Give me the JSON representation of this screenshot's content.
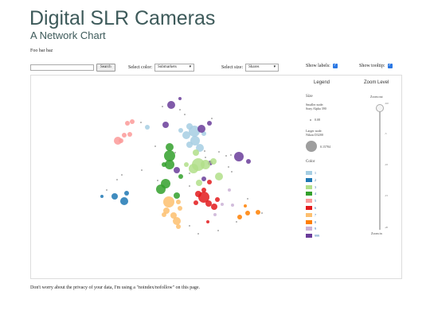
{
  "header": {
    "title": "Digital SLR Cameras",
    "subtitle": "A Network Chart",
    "description": "Foo bar baz"
  },
  "controls": {
    "search_button": "Search",
    "color_label": "Select color:",
    "color_value": "Submarkets",
    "size_label": "Select size:",
    "size_value": "Shares",
    "labels_label": "Show labels:",
    "tooltip_label": "Show tooltip:"
  },
  "legend": {
    "title": "Legend",
    "size_heading": "Size",
    "smaller_node": "Smaller node:",
    "smaller_name": "Sony Alpha 390",
    "smaller_value": "0.08",
    "larger_node": "Larger node:",
    "larger_name": "Nikon D3200",
    "larger_value": "0.15784",
    "color_heading": "Color",
    "color_items": [
      {
        "label": "1",
        "color": "#a6cee3"
      },
      {
        "label": "2",
        "color": "#1f78b4"
      },
      {
        "label": "3",
        "color": "#b2df8a"
      },
      {
        "label": "4",
        "color": "#33a02c"
      },
      {
        "label": "5",
        "color": "#fb9a99"
      },
      {
        "label": "6",
        "color": "#e31a1c"
      },
      {
        "label": "7",
        "color": "#fdbf6f"
      },
      {
        "label": "8",
        "color": "#ff7f00"
      },
      {
        "label": "9",
        "color": "#cab2d6"
      },
      {
        "label": "999",
        "color": "#6a3d9a"
      }
    ]
  },
  "zoom": {
    "title": "Zoom Level",
    "zoom_out": "Zoom out",
    "zoom_in": "Zoom in",
    "ticks": [
      "-0.0",
      "-5",
      "-10",
      "-15",
      "-20"
    ]
  },
  "footer": "Don't worry about the privacy of your data, I'm using a \"noindex/nofollow\" on this page."
}
